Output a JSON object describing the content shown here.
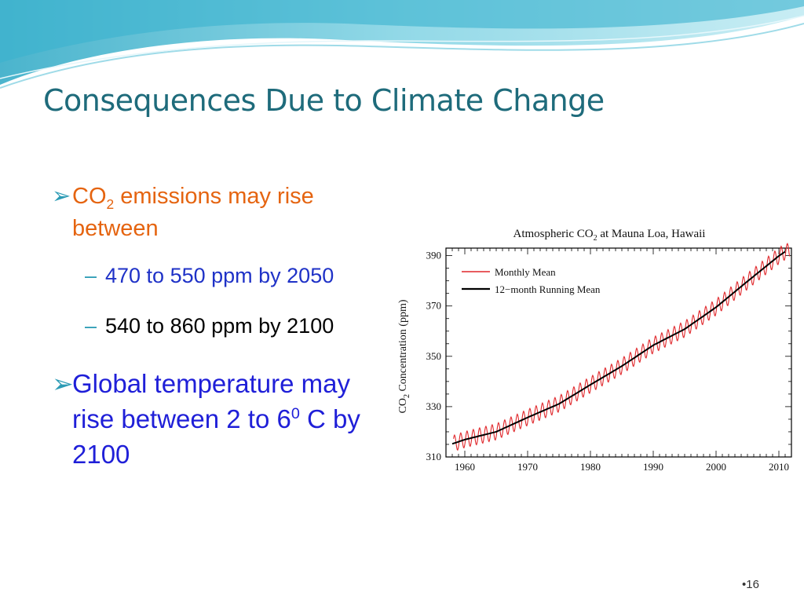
{
  "slide": {
    "title": "Consequences Due to Climate Change",
    "page_number": "•16",
    "bullets": [
      {
        "prefix": "CO",
        "sub": "2",
        "suffix": " emissions may rise between"
      },
      {
        "prefix": "Global temperature may rise between 2 to 6",
        "sup": "0",
        "suffix": " C by 2100"
      }
    ],
    "subbullets": [
      "470 to 550 ppm by 2050",
      "540 to 860 ppm by 2100"
    ],
    "colors": {
      "title": "#1e6b7b",
      "bullet1": "#e56410",
      "sub1": "#1f32c7",
      "sub2": "#000000",
      "bullet2": "#1f1fd8",
      "arrow": "#2c9bb5"
    }
  },
  "chart_data": {
    "type": "line",
    "title_prefix": "Atmospheric CO",
    "title_sub": "2",
    "title_suffix": " at Mauna Loa, Hawaii",
    "ylabel_prefix": "CO",
    "ylabel_sub": "2",
    "ylabel_suffix": " Concentration (ppm)",
    "xlim": [
      1957,
      2012
    ],
    "ylim": [
      310,
      393
    ],
    "xticks": [
      1960,
      1970,
      1980,
      1990,
      2000,
      2010
    ],
    "yticks": [
      310,
      330,
      350,
      370,
      390
    ],
    "legend_position": "top-left",
    "series": [
      {
        "name": "Monthly Mean",
        "color": "#e0262a",
        "style": "seasonal cycle around running mean",
        "seasonal_amplitude_ppm": 3.2
      },
      {
        "name": "12−month Running Mean",
        "color": "#000000",
        "x": [
          1958,
          1960,
          1965,
          1970,
          1975,
          1980,
          1985,
          1990,
          1995,
          2000,
          2005,
          2010,
          2011
        ],
        "values": [
          315.2,
          316.9,
          320.0,
          325.7,
          331.1,
          338.7,
          346.1,
          354.4,
          360.8,
          369.5,
          379.8,
          389.9,
          391.6
        ]
      }
    ]
  }
}
